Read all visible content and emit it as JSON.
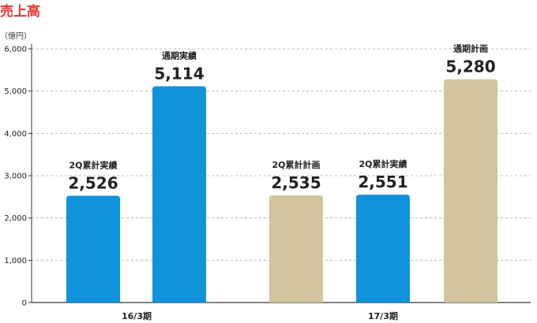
{
  "header": {
    "title": "売上高",
    "title_color": "#e8322f",
    "unit": "（億円）"
  },
  "colors": {
    "actual": "#1193dc",
    "plan": "#d2c49c",
    "grid": "#aaaaaa",
    "axis": "#333333",
    "text": "#222222"
  },
  "chart_data": {
    "type": "bar",
    "unit": "（億円）",
    "ylim": [
      0,
      6000
    ],
    "yticks": [
      0,
      1000,
      2000,
      3000,
      4000,
      5000,
      6000
    ],
    "ytick_labels": [
      "0",
      "1,000",
      "2,000",
      "3,000",
      "4,000",
      "5,000",
      "6,000"
    ],
    "grid": true,
    "groups": [
      {
        "label": "16/3期",
        "bars": [
          {
            "name": "2Q累計実績",
            "value": 2526,
            "value_label": "2,526",
            "kind": "actual"
          },
          {
            "name": "通期実績",
            "value": 5114,
            "value_label": "5,114",
            "kind": "actual"
          }
        ]
      },
      {
        "label": "17/3期",
        "bars": [
          {
            "name": "2Q累計計画",
            "value": 2535,
            "value_label": "2,535",
            "kind": "plan"
          },
          {
            "name": "2Q累計実績",
            "value": 2551,
            "value_label": "2,551",
            "kind": "actual"
          },
          {
            "name": "通期計画",
            "value": 5280,
            "value_label": "5,280",
            "kind": "plan"
          }
        ]
      }
    ]
  }
}
